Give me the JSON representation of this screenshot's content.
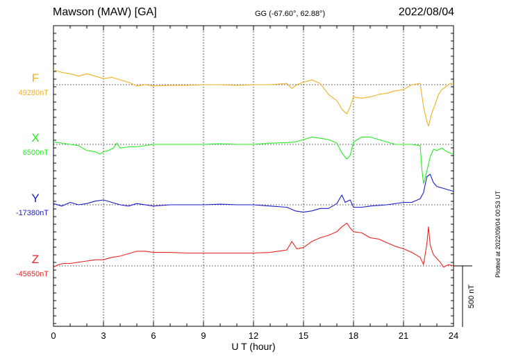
{
  "header": {
    "station": "Mawson (MAW)  [GA]",
    "coords": "GG (-67.60°,  62.88°)",
    "date": "2022/08/04",
    "plotted": "Plotted at 2022/09/04 00:53 UT"
  },
  "colors": {
    "F": "#f0b020",
    "X": "#22ee22",
    "Y": "#1a1acc",
    "Z": "#ee2222"
  },
  "chart_data": {
    "type": "line",
    "xlabel": "U T (hour)",
    "xlim": [
      0,
      24
    ],
    "xticks": [
      "0",
      "3",
      "6",
      "9",
      "12",
      "15",
      "18",
      "21",
      "24"
    ],
    "scale_bar": "500 nT",
    "series": [
      {
        "name": "F",
        "baseline_label": "49280nT",
        "baseline": 49280,
        "x": [
          0,
          0.3,
          0.5,
          1,
          1.5,
          2,
          2.5,
          3,
          3.5,
          4,
          4.5,
          5,
          5.5,
          6,
          7,
          8,
          9,
          10,
          11,
          12,
          13,
          14,
          14.3,
          14.6,
          15,
          15.5,
          16,
          16.5,
          17,
          17.3,
          17.6,
          17.8,
          18,
          18.5,
          19,
          19.5,
          20,
          20.5,
          21,
          21.5,
          22,
          22.2,
          22.4,
          22.5,
          22.7,
          22.9,
          23.1,
          23.3,
          23.6,
          23.8,
          24
        ],
        "y": [
          49400,
          49390,
          49380,
          49370,
          49350,
          49370,
          49350,
          49330,
          49340,
          49320,
          49300,
          49270,
          49280,
          49270,
          49275,
          49275,
          49280,
          49280,
          49275,
          49280,
          49280,
          49290,
          49250,
          49280,
          49300,
          49320,
          49290,
          49200,
          49150,
          49080,
          49040,
          49100,
          49180,
          49170,
          49180,
          49200,
          49210,
          49230,
          49240,
          49280,
          49290,
          49100,
          48980,
          48940,
          49050,
          49120,
          49200,
          49240,
          49270,
          49290,
          49290
        ]
      },
      {
        "name": "X",
        "baseline_label": "6500nT",
        "baseline": 6500,
        "x": [
          0,
          0.5,
          1,
          1.5,
          2,
          2.5,
          2.8,
          3,
          3.3,
          3.6,
          3.8,
          4,
          4.5,
          5,
          6,
          7,
          8,
          9,
          10,
          11,
          12,
          13,
          14,
          14.5,
          15,
          15.5,
          16,
          16.5,
          17,
          17.3,
          17.6,
          17.8,
          18,
          18.5,
          19,
          19.5,
          20,
          20.5,
          21,
          21.5,
          22,
          22.1,
          22.2,
          22.4,
          22.6,
          22.8,
          23,
          23.3,
          23.6,
          24
        ],
        "y": [
          6520,
          6510,
          6500,
          6490,
          6450,
          6440,
          6420,
          6440,
          6450,
          6470,
          6510,
          6470,
          6480,
          6480,
          6500,
          6500,
          6500,
          6500,
          6505,
          6500,
          6500,
          6510,
          6515,
          6520,
          6540,
          6560,
          6550,
          6540,
          6510,
          6430,
          6380,
          6410,
          6520,
          6560,
          6560,
          6540,
          6520,
          6500,
          6500,
          6500,
          6490,
          6300,
          6180,
          6280,
          6400,
          6460,
          6450,
          6470,
          6440,
          6420
        ]
      },
      {
        "name": "Y",
        "baseline_label": "-17380nT",
        "baseline": -17380,
        "x": [
          0,
          0.5,
          1,
          1.5,
          2,
          2.5,
          3,
          3.5,
          4,
          4.5,
          5,
          6,
          7,
          8,
          9,
          10,
          11,
          12,
          13,
          14,
          14.5,
          15,
          15.5,
          16,
          16.5,
          17,
          17.3,
          17.5,
          17.8,
          18,
          18.5,
          19,
          20,
          21,
          21.5,
          22,
          22.2,
          22.4,
          22.6,
          22.8,
          23,
          23.5,
          24
        ],
        "y": [
          -17370,
          -17390,
          -17360,
          -17380,
          -17370,
          -17350,
          -17340,
          -17360,
          -17380,
          -17390,
          -17370,
          -17390,
          -17380,
          -17380,
          -17380,
          -17375,
          -17380,
          -17380,
          -17390,
          -17400,
          -17430,
          -17440,
          -17430,
          -17410,
          -17410,
          -17370,
          -17300,
          -17360,
          -17340,
          -17400,
          -17400,
          -17390,
          -17380,
          -17360,
          -17360,
          -17330,
          -17280,
          -17150,
          -17130,
          -17200,
          -17230,
          -17250,
          -17270
        ]
      },
      {
        "name": "Z",
        "baseline_label": "-45650nT",
        "baseline": -45650,
        "x": [
          0,
          0.3,
          0.6,
          1,
          1.5,
          2,
          2.5,
          3,
          3.5,
          4,
          4.5,
          5,
          5.5,
          6,
          7,
          8,
          9,
          10,
          11,
          12,
          13,
          14,
          14.3,
          14.6,
          15,
          15.5,
          16,
          16.5,
          17,
          17.3,
          17.6,
          17.8,
          18,
          18.5,
          19,
          19.5,
          20,
          20.5,
          21,
          21.5,
          22,
          22.2,
          22.4,
          22.5,
          22.6,
          22.8,
          23,
          23.2,
          23.4,
          23.7,
          24
        ],
        "y": [
          -45660,
          -45640,
          -45630,
          -45630,
          -45620,
          -45610,
          -45600,
          -45600,
          -45580,
          -45570,
          -45550,
          -45530,
          -45530,
          -45540,
          -45540,
          -45545,
          -45545,
          -45545,
          -45545,
          -45545,
          -45540,
          -45520,
          -45450,
          -45510,
          -45500,
          -45450,
          -45420,
          -45400,
          -45370,
          -45330,
          -45300,
          -45340,
          -45370,
          -45380,
          -45420,
          -45430,
          -45460,
          -45490,
          -45510,
          -45540,
          -45580,
          -45640,
          -45470,
          -45330,
          -45480,
          -45560,
          -45590,
          -45620,
          -45660,
          -45640,
          -45650
        ]
      }
    ]
  }
}
